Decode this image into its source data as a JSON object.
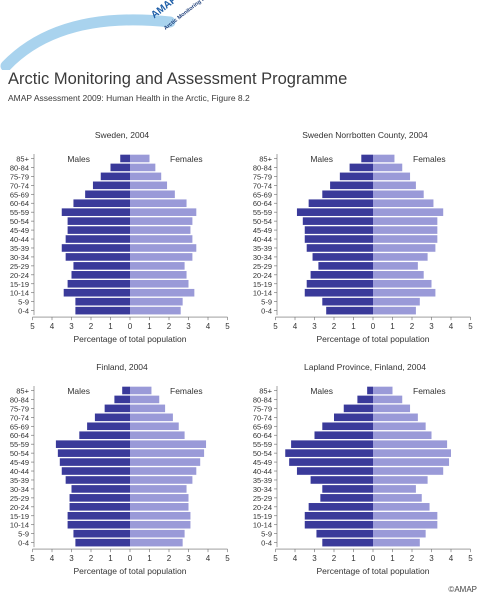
{
  "header": {
    "logo_abbr": "AMAP",
    "logo_full": "Arctic Monitoring and Assessment Programme",
    "title": "Arctic Monitoring and Assessment Programme",
    "subtitle": "AMAP Assessment 2009: Human Health in the Arctic, Figure 8.2"
  },
  "footer": {
    "copyright": "©AMAP"
  },
  "colors": {
    "males": "#3a3a9a",
    "females": "#9a9ad8",
    "arc": "#a9d3ee",
    "axis": "#666666"
  },
  "chart_data": [
    {
      "type": "bar",
      "title": "Sweden, 2004",
      "xlabel": "Percentage of total population",
      "xlim": [
        -5,
        5
      ],
      "x_ticks": [
        "5",
        "4",
        "3",
        "2",
        "1",
        "0",
        "1",
        "2",
        "3",
        "4",
        "5"
      ],
      "categories": [
        "85+",
        "80-84",
        "75-79",
        "70-74",
        "65-69",
        "60-64",
        "55-59",
        "50-54",
        "45-49",
        "40-44",
        "35-39",
        "30-34",
        "25-29",
        "20-24",
        "15-19",
        "10-14",
        "5-9",
        "0-4"
      ],
      "series": [
        {
          "name": "Males",
          "values": [
            0.5,
            1.0,
            1.5,
            1.9,
            2.3,
            2.9,
            3.5,
            3.2,
            3.2,
            3.3,
            3.5,
            3.3,
            2.9,
            3.0,
            3.2,
            3.4,
            2.8,
            2.8
          ]
        },
        {
          "name": "Females",
          "values": [
            1.0,
            1.3,
            1.6,
            1.9,
            2.3,
            2.9,
            3.4,
            3.2,
            3.1,
            3.2,
            3.4,
            3.2,
            2.8,
            2.9,
            3.0,
            3.3,
            2.7,
            2.6
          ]
        }
      ]
    },
    {
      "type": "bar",
      "title": "Sweden Norrbotten County, 2004",
      "xlabel": "Percentage of total population",
      "xlim": [
        -5,
        5
      ],
      "x_ticks": [
        "5",
        "4",
        "3",
        "2",
        "1",
        "0",
        "1",
        "2",
        "3",
        "4",
        "5"
      ],
      "categories": [
        "85+",
        "80-84",
        "75-79",
        "70-74",
        "65-69",
        "60-64",
        "55-59",
        "50-54",
        "45-49",
        "40-44",
        "35-39",
        "30-34",
        "25-29",
        "20-24",
        "15-19",
        "10-14",
        "5-9",
        "0-4"
      ],
      "series": [
        {
          "name": "Males",
          "values": [
            0.6,
            1.2,
            1.7,
            2.2,
            2.6,
            3.3,
            3.9,
            3.6,
            3.5,
            3.5,
            3.4,
            3.1,
            2.8,
            3.2,
            3.4,
            3.5,
            2.6,
            2.4
          ]
        },
        {
          "name": "Females",
          "values": [
            1.1,
            1.5,
            1.9,
            2.2,
            2.6,
            3.1,
            3.6,
            3.3,
            3.3,
            3.3,
            3.2,
            2.8,
            2.3,
            2.6,
            3.0,
            3.2,
            2.4,
            2.2
          ]
        }
      ]
    },
    {
      "type": "bar",
      "title": "Finland, 2004",
      "xlabel": "Percentage of total population",
      "xlim": [
        -5,
        5
      ],
      "x_ticks": [
        "5",
        "4",
        "3",
        "2",
        "1",
        "0",
        "1",
        "2",
        "3",
        "4",
        "5"
      ],
      "categories": [
        "85+",
        "80-84",
        "75-79",
        "70-74",
        "65-69",
        "60-64",
        "55-59",
        "50-54",
        "45-49",
        "40-44",
        "35-39",
        "30-34",
        "25-29",
        "20-24",
        "15-19",
        "10-14",
        "5-9",
        "0-4"
      ],
      "series": [
        {
          "name": "Males",
          "values": [
            0.4,
            0.8,
            1.3,
            1.8,
            2.2,
            2.6,
            3.8,
            3.7,
            3.6,
            3.5,
            3.3,
            3.0,
            3.1,
            3.1,
            3.2,
            3.2,
            2.9,
            2.8
          ]
        },
        {
          "name": "Females",
          "values": [
            1.1,
            1.5,
            1.8,
            2.2,
            2.5,
            2.8,
            3.9,
            3.8,
            3.6,
            3.4,
            3.2,
            2.9,
            3.0,
            3.0,
            3.1,
            3.1,
            2.8,
            2.7
          ]
        }
      ]
    },
    {
      "type": "bar",
      "title": "Lapland Province, Finland, 2004",
      "xlabel": "Percentage of total population",
      "xlim": [
        -5,
        5
      ],
      "x_ticks": [
        "5",
        "4",
        "3",
        "2",
        "1",
        "0",
        "1",
        "2",
        "3",
        "4",
        "5"
      ],
      "categories": [
        "85+",
        "80-84",
        "75-79",
        "70-74",
        "65-69",
        "60-64",
        "55-59",
        "50-54",
        "45-49",
        "40-44",
        "35-39",
        "30-34",
        "25-29",
        "20-24",
        "15-19",
        "10-14",
        "5-9",
        "0-4"
      ],
      "series": [
        {
          "name": "Males",
          "values": [
            0.3,
            0.8,
            1.5,
            2.0,
            2.6,
            3.0,
            4.2,
            4.5,
            4.3,
            3.9,
            3.2,
            2.6,
            2.7,
            3.3,
            3.5,
            3.5,
            2.9,
            2.6
          ]
        },
        {
          "name": "Females",
          "values": [
            1.0,
            1.5,
            1.9,
            2.3,
            2.7,
            3.0,
            3.8,
            4.0,
            3.9,
            3.6,
            2.8,
            2.2,
            2.5,
            2.9,
            3.3,
            3.3,
            2.7,
            2.4
          ]
        }
      ]
    }
  ]
}
